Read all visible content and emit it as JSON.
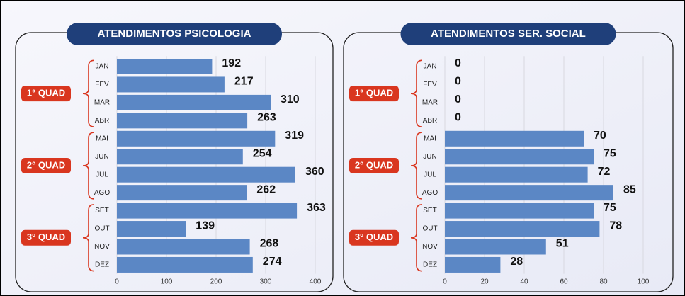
{
  "chart_data": [
    {
      "type": "bar",
      "orientation": "horizontal",
      "title": "ATENDIMENTOS PSICOLOGIA",
      "categories": [
        "JAN",
        "FEV",
        "MAR",
        "ABR",
        "MAI",
        "JUN",
        "JUL",
        "AGO",
        "SET",
        "OUT",
        "NOV",
        "DEZ"
      ],
      "values": [
        192,
        217,
        310,
        263,
        319,
        254,
        360,
        262,
        363,
        139,
        268,
        274
      ],
      "groups": [
        {
          "label": "1° QUAD",
          "count": 4
        },
        {
          "label": "2° QUAD",
          "count": 4
        },
        {
          "label": "3° QUAD",
          "count": 4
        }
      ],
      "color": "#5b87c5",
      "xlim": [
        0,
        400
      ],
      "xticks": [
        0,
        100,
        200,
        300,
        400
      ],
      "grid": true
    },
    {
      "type": "bar",
      "orientation": "horizontal",
      "title": "ATENDIMENTOS SER. SOCIAL",
      "categories": [
        "JAN",
        "FEV",
        "MAR",
        "ABR",
        "MAI",
        "JUN",
        "JUL",
        "AGO",
        "SET",
        "OUT",
        "NOV",
        "DEZ"
      ],
      "values": [
        0,
        0,
        0,
        0,
        70,
        75,
        72,
        85,
        75,
        78,
        51,
        28
      ],
      "groups": [
        {
          "label": "1° QUAD",
          "count": 4
        },
        {
          "label": "2° QUAD",
          "count": 4
        },
        {
          "label": "3° QUAD",
          "count": 4
        }
      ],
      "color": "#5b87c5",
      "xlim": [
        0,
        100
      ],
      "xticks": [
        0,
        20,
        40,
        60,
        80,
        100
      ],
      "grid": true
    }
  ]
}
